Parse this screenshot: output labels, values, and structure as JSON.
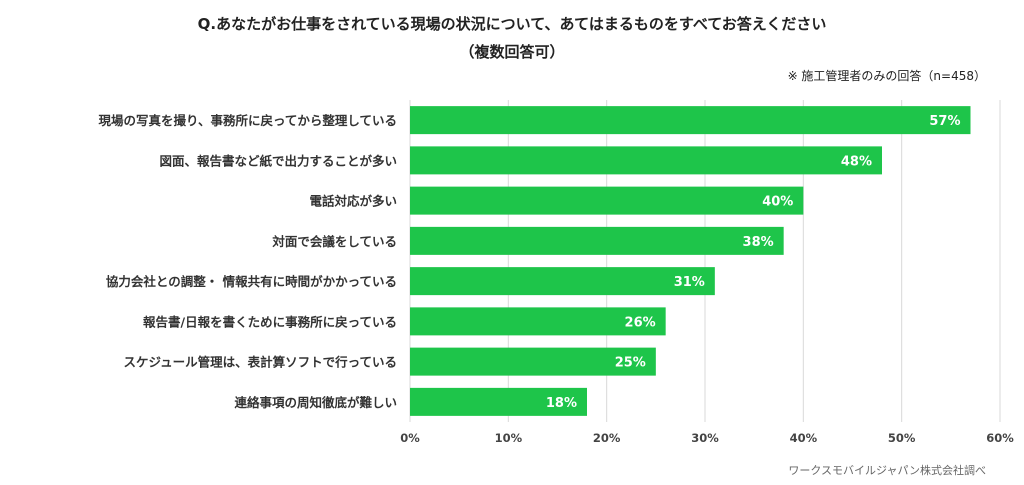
{
  "chart_data": {
    "type": "bar",
    "orientation": "horizontal",
    "title_line1": "Q.あなたがお仕事をされている現場の状況について、あてはまるものをすべてお答えください",
    "title_line2": "（複数回答可）",
    "note": "※ 施工管理者のみの回答（n=458）",
    "source": "ワークスモバイルジャパン株式会社調べ",
    "categories": [
      "現場の写真を撮り、事務所に戻ってから整理している",
      "図面、報告書など紙で出力することが多い",
      "電話対応が多い",
      "対面で会議をしている",
      "協力会社との調整・ 情報共有に時間がかかっている",
      "報告書/日報を書くために事務所に戻っている",
      "スケジュール管理は、表計算ソフトで行っている",
      "連絡事項の周知徹底が難しい"
    ],
    "values": [
      57,
      48,
      40,
      38,
      31,
      26,
      25,
      18
    ],
    "value_labels": [
      "57%",
      "48%",
      "40%",
      "38%",
      "31%",
      "26%",
      "25%",
      "18%"
    ],
    "xlim": [
      0,
      60
    ],
    "x_ticks": [
      "0%",
      "10%",
      "20%",
      "30%",
      "40%",
      "50%",
      "60%"
    ],
    "grid": true,
    "bar_color": "#1ec54a"
  }
}
